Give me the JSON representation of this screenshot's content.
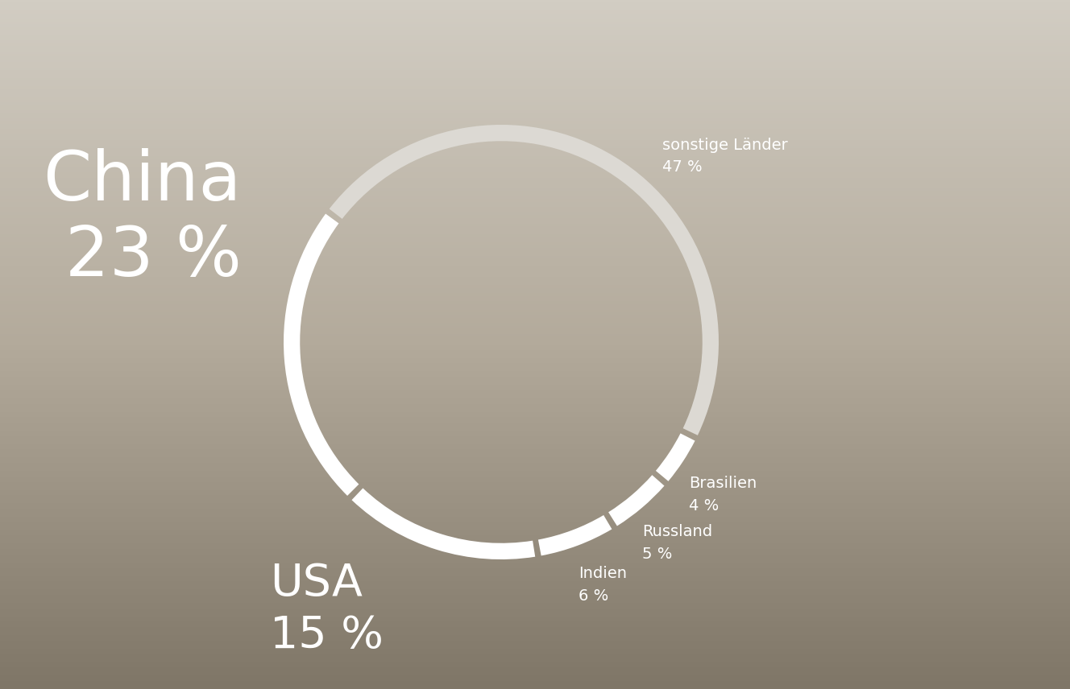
{
  "chart_data": {
    "type": "pie",
    "categories": [
      "China",
      "USA",
      "Indien",
      "Russland",
      "Brasilien",
      "sonstige Länder"
    ],
    "values": [
      23,
      15,
      6,
      5,
      4,
      47
    ],
    "value_labels": [
      "23 %",
      "15 %",
      "6 %",
      "5 %",
      "4 %",
      "47 %"
    ],
    "colors": [
      "#ffffff",
      "#ffffff",
      "#ffffff",
      "#ffffff",
      "#ffffff",
      "#dcd9d3"
    ]
  }
}
